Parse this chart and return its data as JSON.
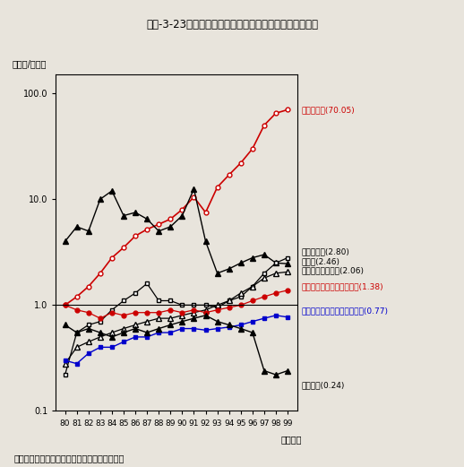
{
  "title": "第２-3-23図　我が国の主要業種の技術貿易収支比の推移",
  "ylabel": "（輸出/輸入）",
  "xlabel": "（年度）",
  "source": "資料：総務省統計局「科学技術研究調査報告」",
  "years": [
    80,
    81,
    82,
    83,
    84,
    85,
    86,
    87,
    88,
    89,
    90,
    91,
    92,
    93,
    94,
    95,
    96,
    97,
    98,
    99
  ],
  "series": [
    {
      "name": "自動車工業(70.05)",
      "color": "#cc0000",
      "marker": "o",
      "markerfacecolor": "white",
      "markersize": 3.5,
      "linewidth": 1.2,
      "values": [
        1.0,
        1.2,
        1.5,
        2.0,
        2.8,
        3.5,
        4.5,
        5.2,
        5.8,
        6.5,
        8.0,
        10.5,
        7.5,
        13.0,
        17.0,
        22.0,
        30.0,
        50.0,
        65.0,
        70.05
      ]
    },
    {
      "name": "製造業(2.46)",
      "color": "#000000",
      "marker": "^",
      "markerfacecolor": "#000000",
      "markersize": 4,
      "linewidth": 1.0,
      "values": [
        4.0,
        5.5,
        5.0,
        10.0,
        12.0,
        7.0,
        7.5,
        6.5,
        5.0,
        5.5,
        7.0,
        12.5,
        4.0,
        2.0,
        2.2,
        2.5,
        2.8,
        3.0,
        2.5,
        2.46
      ]
    },
    {
      "name": "医薬品工業(2.80)",
      "color": "#000000",
      "marker": "s",
      "markerfacecolor": "white",
      "markersize": 3.5,
      "linewidth": 0.9,
      "values": [
        0.22,
        0.55,
        0.65,
        0.7,
        0.9,
        1.1,
        1.3,
        1.6,
        1.1,
        1.1,
        1.0,
        1.0,
        1.0,
        0.95,
        1.1,
        1.2,
        1.5,
        2.0,
        2.5,
        2.8
      ]
    },
    {
      "name": "電気機械器具工業(2.06)",
      "color": "#000000",
      "marker": "^",
      "markerfacecolor": "white",
      "markersize": 4,
      "linewidth": 0.9,
      "values": [
        0.28,
        0.4,
        0.45,
        0.5,
        0.55,
        0.6,
        0.65,
        0.7,
        0.75,
        0.75,
        0.8,
        0.85,
        0.9,
        1.0,
        1.1,
        1.3,
        1.5,
        1.8,
        2.0,
        2.06
      ]
    },
    {
      "name": "医薬品工業を除く化学工業(1.38)",
      "color": "#cc0000",
      "marker": "o",
      "markerfacecolor": "#cc0000",
      "markersize": 3.5,
      "linewidth": 0.9,
      "values": [
        1.0,
        0.9,
        0.85,
        0.75,
        0.85,
        0.8,
        0.85,
        0.85,
        0.85,
        0.9,
        0.85,
        0.9,
        0.85,
        0.9,
        0.95,
        1.0,
        1.1,
        1.2,
        1.3,
        1.38
      ]
    },
    {
      "name": "通信・電子・電気計測器工業(0.77)",
      "color": "#0000cc",
      "marker": "s",
      "markerfacecolor": "#0000cc",
      "markersize": 3.5,
      "linewidth": 1.0,
      "values": [
        0.3,
        0.28,
        0.35,
        0.4,
        0.4,
        0.45,
        0.5,
        0.5,
        0.55,
        0.55,
        0.6,
        0.6,
        0.58,
        0.6,
        0.62,
        0.65,
        0.7,
        0.75,
        0.8,
        0.77
      ]
    },
    {
      "name": "非製造業(0.24)",
      "color": "#000000",
      "marker": "^",
      "markerfacecolor": "#000000",
      "markersize": 4,
      "linewidth": 1.0,
      "values": [
        0.65,
        0.55,
        0.6,
        0.55,
        0.5,
        0.55,
        0.6,
        0.55,
        0.6,
        0.65,
        0.7,
        0.75,
        0.8,
        0.7,
        0.65,
        0.6,
        0.55,
        0.24,
        0.22,
        0.24
      ]
    }
  ],
  "bg_color": "#e8e4dc",
  "plot_bg": "#e8e4dc"
}
